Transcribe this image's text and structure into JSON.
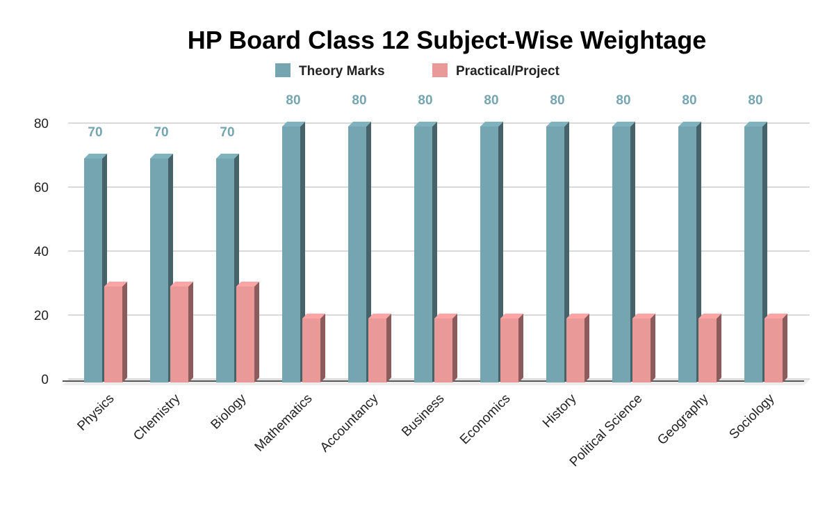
{
  "chart_data": {
    "type": "bar",
    "title": "HP Board Class 12 Subject-Wise Weightage",
    "xlabel": "",
    "ylabel": "",
    "ylim": [
      0,
      80
    ],
    "yticks": [
      0,
      20,
      40,
      60,
      80
    ],
    "grid": true,
    "legend_position": "top",
    "categories": [
      "Physics",
      "Chemistry",
      "Biology",
      "Mathematics",
      "Accountancy",
      "Business",
      "Economics",
      "History",
      "Political Science",
      "Geography",
      "Sociology"
    ],
    "series": [
      {
        "name": "Theory Marks",
        "color": "#74a5b0",
        "values": [
          70,
          70,
          70,
          80,
          80,
          80,
          80,
          80,
          80,
          80,
          80
        ],
        "labels_shown": true
      },
      {
        "name": "Practical/Project",
        "color": "#ea9999",
        "values": [
          30,
          30,
          30,
          20,
          20,
          20,
          20,
          20,
          20,
          20,
          20
        ],
        "labels_shown": false
      }
    ],
    "label_color": "#74a5b0"
  }
}
